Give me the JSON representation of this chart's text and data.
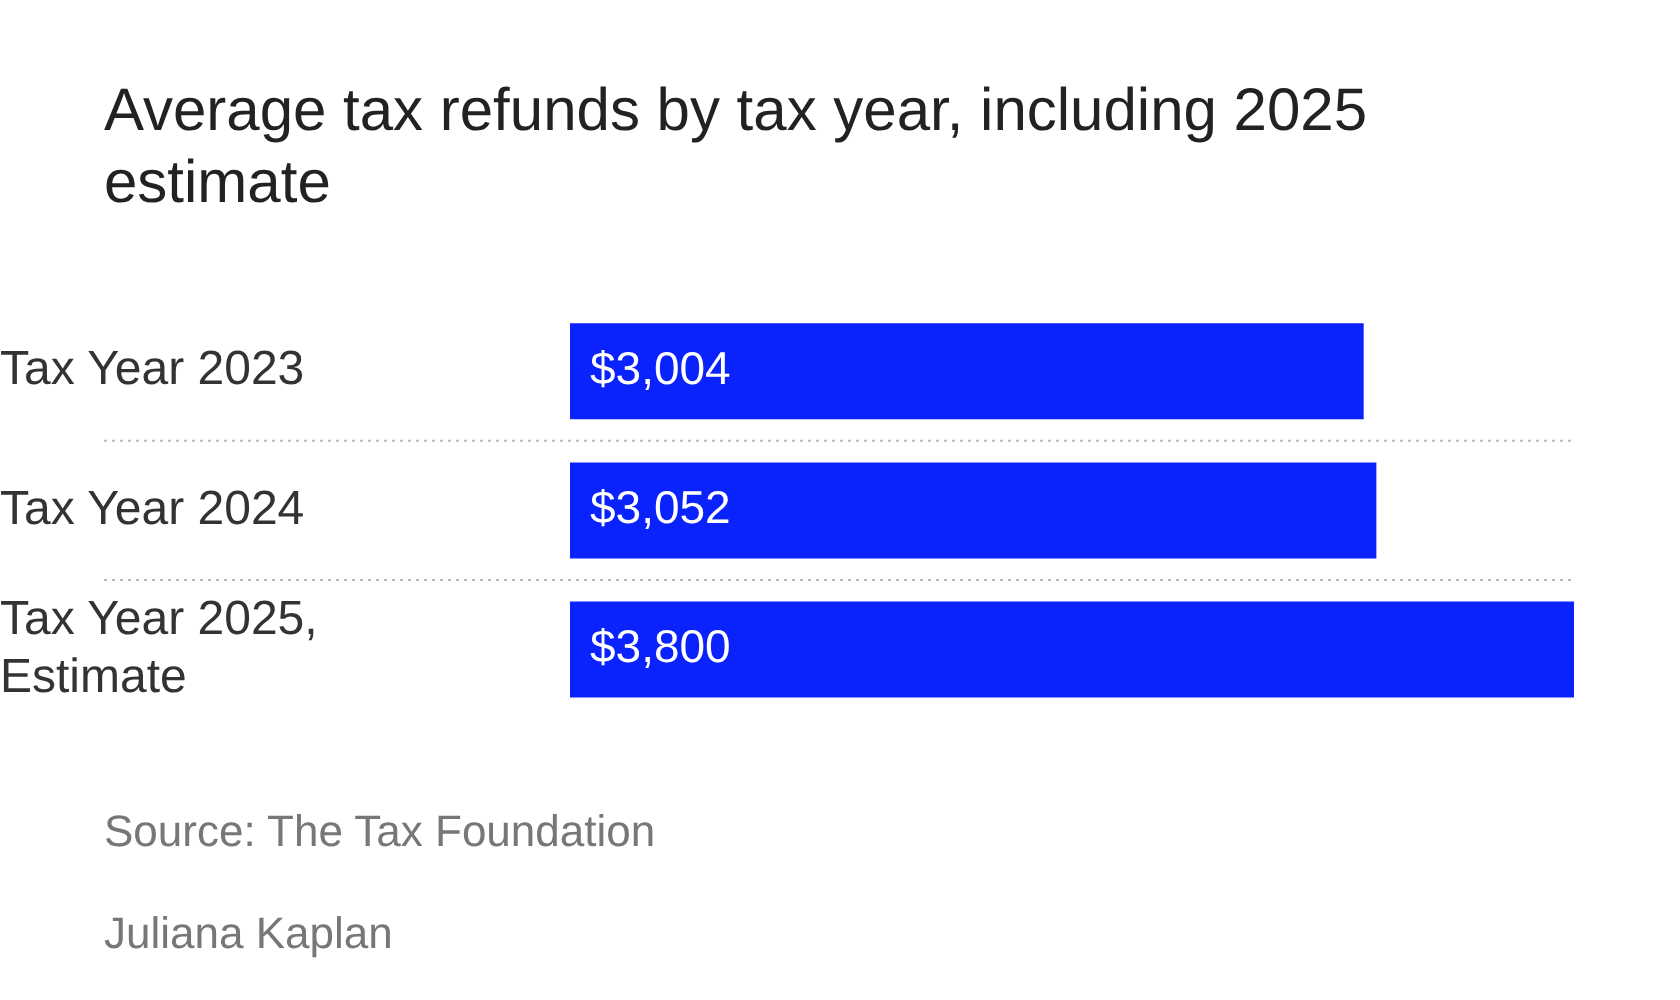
{
  "chart_data": {
    "type": "bar",
    "orientation": "horizontal",
    "title": "Average tax refunds by tax year, including 2025 estimate",
    "categories": [
      "Tax Year 2023",
      "Tax Year 2024",
      "Tax Year 2025, Estimate"
    ],
    "values": [
      3004,
      3052,
      3800
    ],
    "color": "#0a22fb",
    "xlim": [
      0,
      3800
    ],
    "value_labels": [
      "$3,004",
      "$3,052",
      "$3,800"
    ],
    "grid": "y",
    "legend": false,
    "annotations": [
      "Source: The Tax Foundation",
      "Juliana Kaplan"
    ]
  }
}
